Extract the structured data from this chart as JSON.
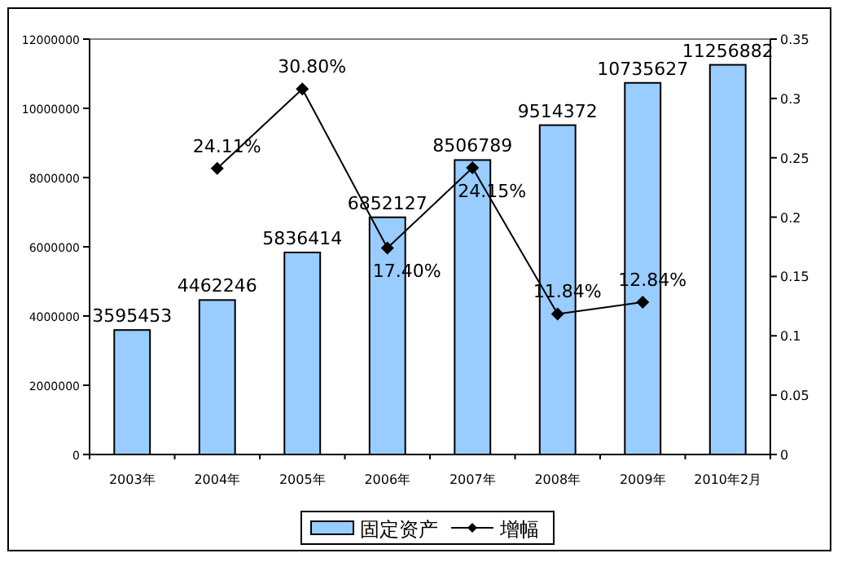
{
  "chart_data": {
    "type": "bar",
    "categories": [
      "2003年",
      "2004年",
      "2005年",
      "2006年",
      "2007年",
      "2008年",
      "2009年",
      "2010年2月"
    ],
    "series": [
      {
        "name": "固定资产",
        "color": "#99ccff",
        "values": [
          3595453,
          4462246,
          5836414,
          6852127,
          8506789,
          9514372,
          10735627,
          11256882
        ],
        "value_labels": [
          "3595453",
          "4462246",
          "5836414",
          "6852127",
          "8506789",
          "9514372",
          "10735627",
          "11256882"
        ]
      },
      {
        "name": "增幅",
        "type": "line",
        "axis": "y2",
        "color": "#000000",
        "marker": "diamond",
        "values": [
          null,
          0.2411,
          0.308,
          0.174,
          0.2415,
          0.1184,
          0.1284,
          null
        ],
        "value_labels": [
          null,
          "24.11%",
          "30.80%",
          "17.40%",
          "24.15%",
          "11.84%",
          "12.84%",
          null
        ]
      }
    ],
    "ylim": [
      0,
      12000000
    ],
    "yticks": [
      0,
      2000000,
      4000000,
      6000000,
      8000000,
      10000000,
      12000000
    ],
    "y2lim": [
      0,
      0.35
    ],
    "y2ticks": [
      0,
      0.05,
      0.1,
      0.15,
      0.2,
      0.25,
      0.3,
      0.35
    ],
    "legend": "bottom"
  }
}
